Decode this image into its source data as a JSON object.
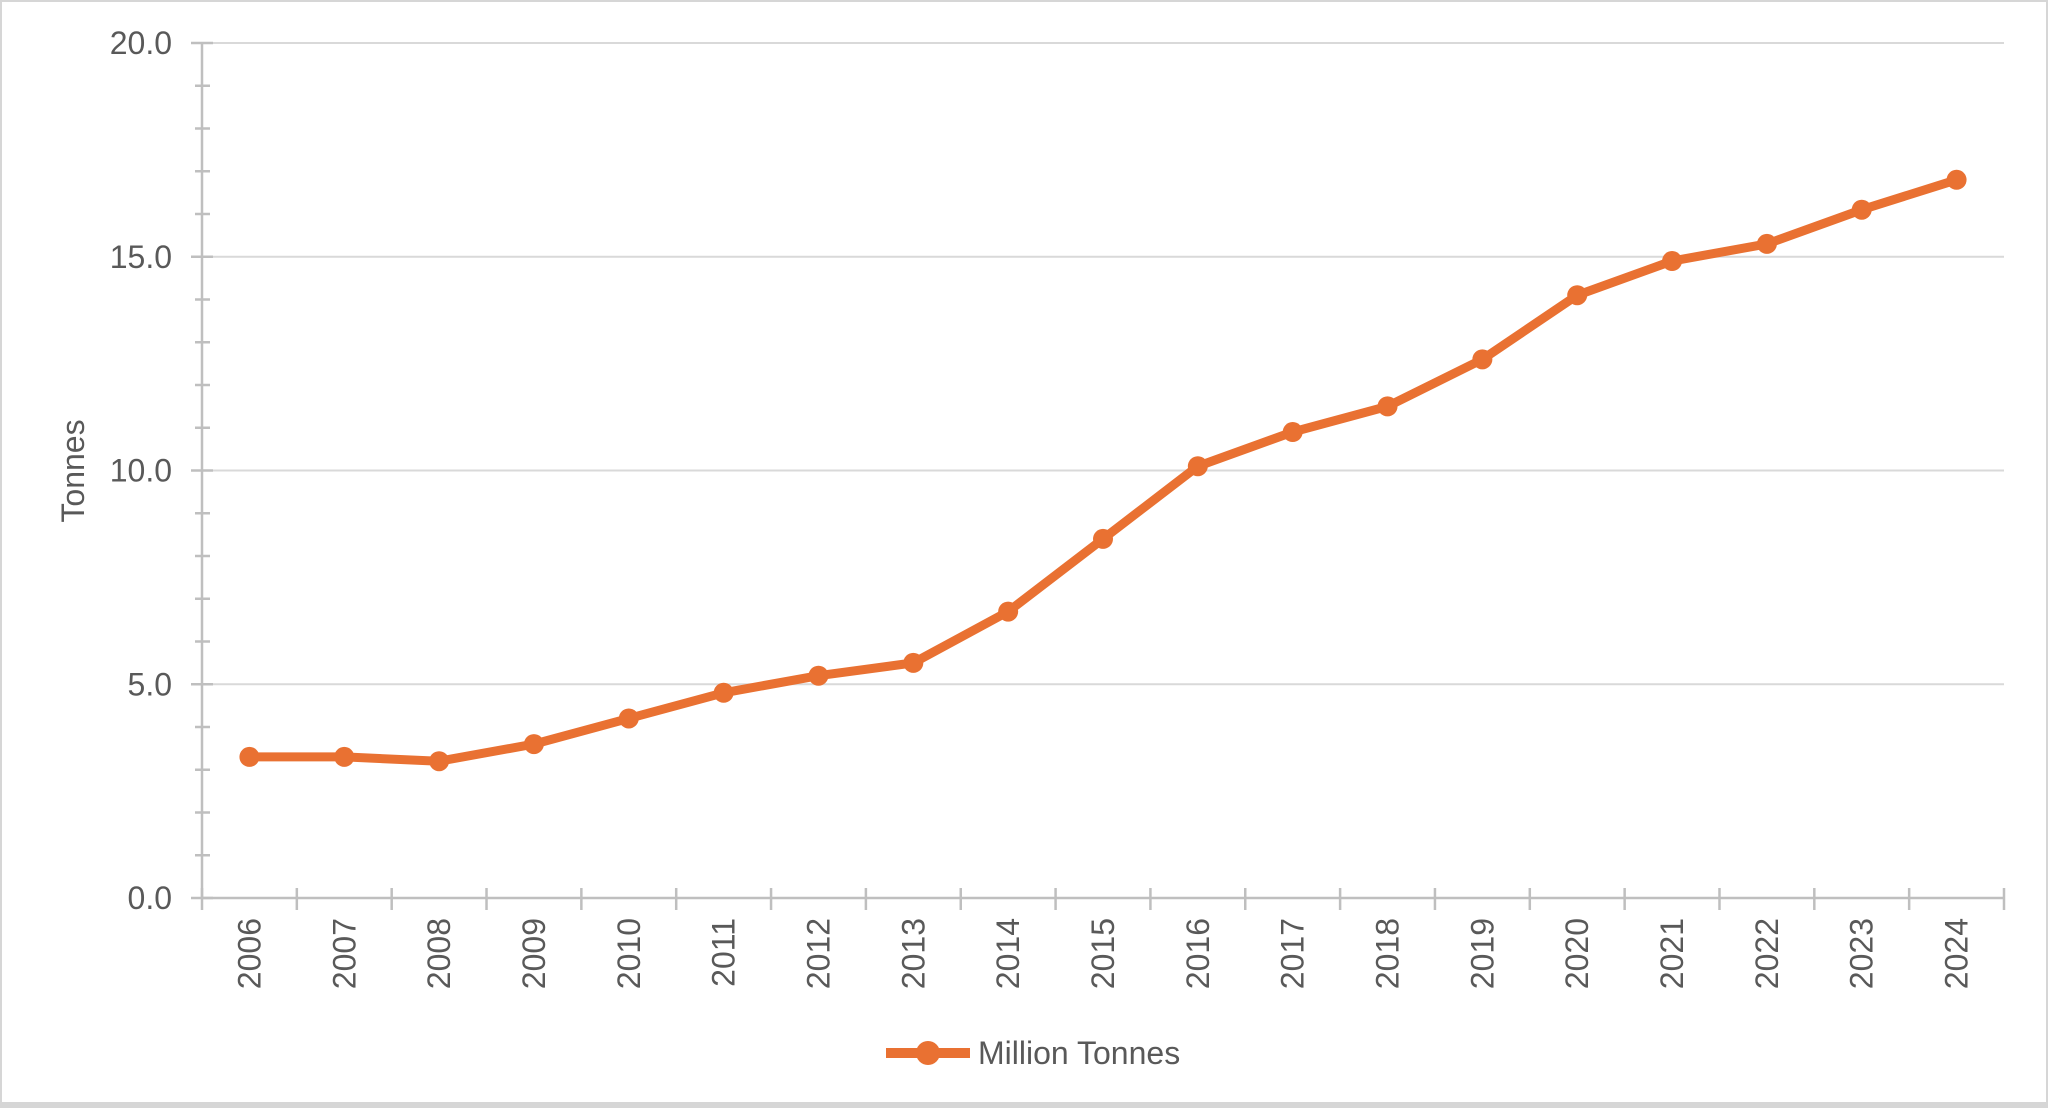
{
  "chart_data": {
    "type": "line",
    "title": "",
    "xlabel": "",
    "ylabel": "Tonnes",
    "categories": [
      "2006",
      "2007",
      "2008",
      "2009",
      "2010",
      "2011",
      "2012",
      "2013",
      "2014",
      "2015",
      "2016",
      "2017",
      "2018",
      "2019",
      "2020",
      "2021",
      "2022",
      "2023",
      "2024"
    ],
    "series": [
      {
        "name": "Million Tonnes",
        "values": [
          3.3,
          3.3,
          3.2,
          3.6,
          4.2,
          4.8,
          5.2,
          5.5,
          6.7,
          8.4,
          10.1,
          10.9,
          11.5,
          12.6,
          14.1,
          14.9,
          15.3,
          16.1,
          16.8
        ],
        "color": "#E97132",
        "marker": "circle"
      }
    ],
    "ylim": [
      0,
      20
    ],
    "y_ticks": {
      "values": [
        0,
        5,
        10,
        15,
        20
      ],
      "labels": [
        "0.0",
        "5.0",
        "10.0",
        "15.0",
        "20.0"
      ]
    },
    "y_minor_tick_step": 1,
    "grid": "horizontal-major",
    "legend_position": "bottom-center",
    "colors": {
      "accent": "#E97132",
      "text": "#595959",
      "axis": "#BFBFBF",
      "gridline": "#D9D9D9",
      "background": "#FFFFFF",
      "border": "#D6D6D6"
    }
  }
}
